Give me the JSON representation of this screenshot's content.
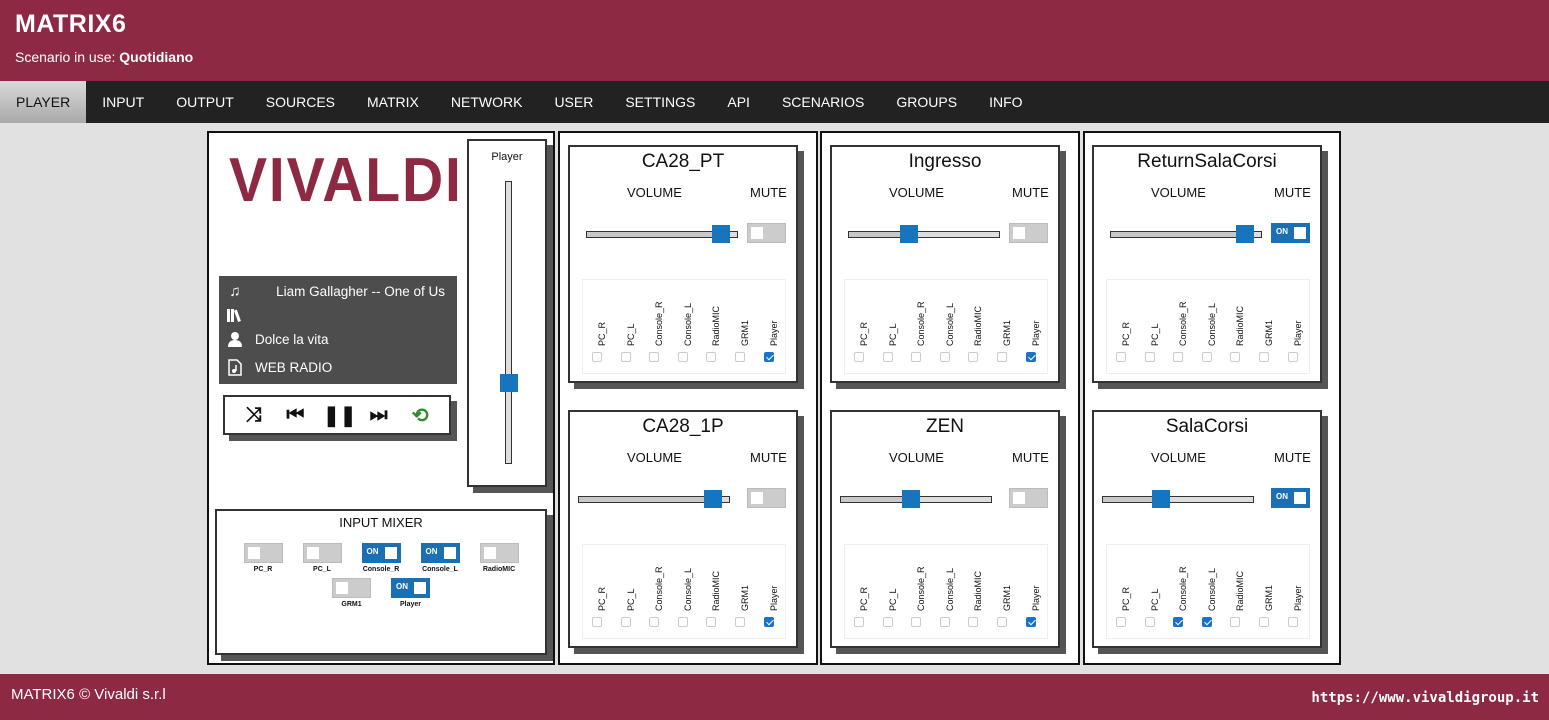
{
  "header": {
    "title": "MATRIX6",
    "scenario_label": "Scenario in use:",
    "scenario_value": "Quotidiano"
  },
  "nav": {
    "tabs": [
      "PLAYER",
      "INPUT",
      "OUTPUT",
      "SOURCES",
      "MATRIX",
      "NETWORK",
      "USER",
      "SETTINGS",
      "API",
      "SCENARIOS",
      "GROUPS",
      "INFO"
    ],
    "active": "PLAYER"
  },
  "player": {
    "logo": "VIVALDI",
    "track": "Liam Gallagher -- One of Us",
    "album": "",
    "artist": "Dolce la vita",
    "source": "WEB RADIO",
    "slider_label": "Player",
    "volume_fraction": 0.27,
    "controls": [
      "shuffle",
      "previous",
      "pause",
      "next",
      "repeat"
    ]
  },
  "mixer": {
    "title": "INPUT MIXER",
    "inputs": [
      {
        "name": "PC_R",
        "on": false
      },
      {
        "name": "PC_L",
        "on": false
      },
      {
        "name": "Console_R",
        "on": true
      },
      {
        "name": "Console_L",
        "on": true
      },
      {
        "name": "RadioMIC",
        "on": false
      },
      {
        "name": "GRM1",
        "on": false
      },
      {
        "name": "Player",
        "on": true
      }
    ]
  },
  "labels": {
    "volume": "VOLUME",
    "mute": "MUTE",
    "on": "ON"
  },
  "route_sources": [
    "PC_R",
    "PC_L",
    "Console_R",
    "Console_L",
    "RadioMIC",
    "GRM1",
    "Player"
  ],
  "zones": [
    {
      "name": "CA28_PT",
      "volume_fraction": 0.94,
      "mute": false,
      "routes": [
        false,
        false,
        false,
        false,
        false,
        false,
        true
      ]
    },
    {
      "name": "CA28_1P",
      "volume_fraction": 0.94,
      "mute": false,
      "routes": [
        false,
        false,
        false,
        false,
        false,
        false,
        true
      ]
    },
    {
      "name": "Ingresso",
      "volume_fraction": 0.39,
      "mute": false,
      "routes": [
        false,
        false,
        false,
        false,
        false,
        false,
        true
      ]
    },
    {
      "name": "ZEN",
      "volume_fraction": 0.46,
      "mute": false,
      "routes": [
        false,
        false,
        false,
        false,
        false,
        false,
        true
      ]
    },
    {
      "name": "ReturnSalaCorsi",
      "volume_fraction": 0.94,
      "mute": true,
      "routes": [
        false,
        false,
        false,
        false,
        false,
        false,
        false
      ]
    },
    {
      "name": "SalaCorsi",
      "volume_fraction": 0.37,
      "mute": true,
      "routes": [
        false,
        false,
        true,
        true,
        false,
        false,
        false
      ]
    }
  ],
  "footer": {
    "copyright": "MATRIX6 © Vivaldi s.r.l",
    "url": "https://www.vivaldigroup.it"
  }
}
